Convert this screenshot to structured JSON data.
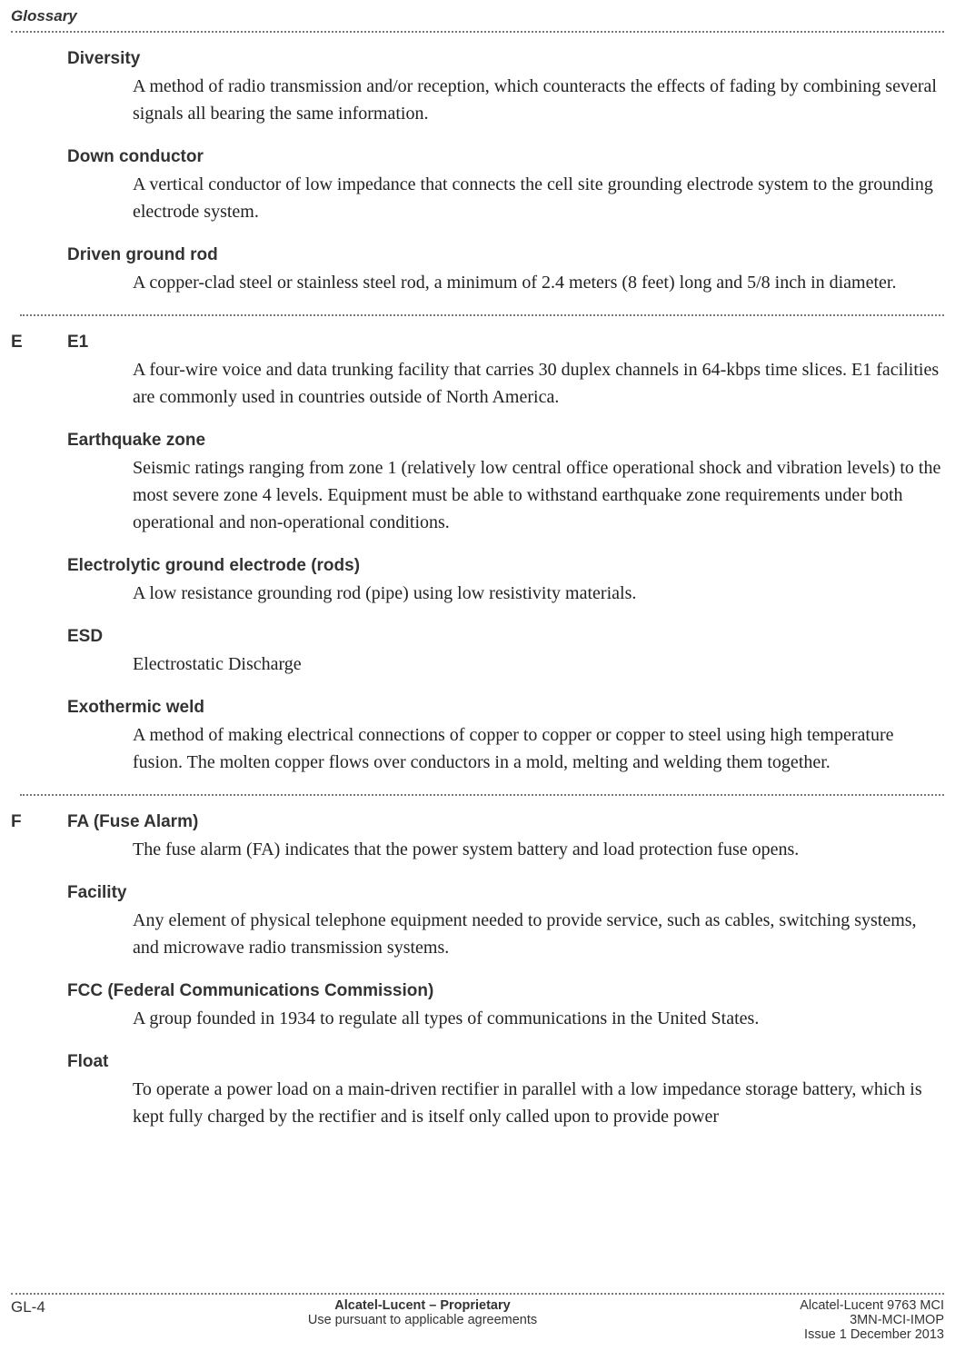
{
  "header": "Glossary",
  "sections": [
    {
      "letter": "",
      "entries": [
        {
          "term": "Diversity",
          "expansion": "",
          "def": "A method of radio transmission and/or reception, which counteracts the effects of fading by combining several signals all bearing the same information."
        },
        {
          "term": "Down conductor",
          "expansion": "",
          "def": "A vertical conductor of low impedance that connects the cell site grounding electrode system to the grounding electrode system."
        },
        {
          "term": "Driven ground rod",
          "expansion": "",
          "def": "A copper-clad steel or stainless steel rod, a minimum of 2.4 meters (8 feet) long and 5/8 inch in diameter."
        }
      ]
    },
    {
      "letter": "E",
      "entries": [
        {
          "term": "E1",
          "expansion": "",
          "def": "A four-wire voice and data trunking facility that carries 30 duplex channels in 64-kbps time slices. E1 facilities are commonly used in countries outside of North America."
        },
        {
          "term": "Earthquake zone",
          "expansion": "",
          "def": "Seismic ratings ranging from zone 1 (relatively low central office operational shock and vibration levels) to the most severe zone 4 levels. Equipment must be able to withstand earthquake zone requirements under both operational and non-operational conditions."
        },
        {
          "term": "Electrolytic ground electrode",
          "expansion": "(rods)",
          "def": "A low resistance grounding rod (pipe) using low resistivity materials."
        },
        {
          "term": "ESD",
          "expansion": "",
          "def": "Electrostatic Discharge"
        },
        {
          "term": "Exothermic weld",
          "expansion": "",
          "def": "A method of making electrical connections of copper to copper or copper to steel using high temperature fusion. The molten copper flows over conductors in a mold, melting and welding them together."
        }
      ]
    },
    {
      "letter": "F",
      "entries": [
        {
          "term": "FA",
          "expansion": "(Fuse Alarm)",
          "def": "The fuse alarm (FA) indicates that the power system battery and load protection fuse opens."
        },
        {
          "term": "Facility",
          "expansion": "",
          "def": "Any element of physical telephone equipment needed to provide service, such as cables, switching systems, and microwave radio transmission systems."
        },
        {
          "term": "FCC",
          "expansion": "(Federal Communications Commission)",
          "def": "A group founded in 1934 to regulate all types of communications in the United States."
        },
        {
          "term": "Float",
          "expansion": "",
          "def": "To operate a power load on a main-driven rectifier in parallel with a low impedance storage battery, which is kept fully charged by the rectifier and is itself only called upon to provide power"
        }
      ]
    }
  ],
  "footer": {
    "page": "GL-4",
    "center1": "Alcatel-Lucent – Proprietary",
    "center2": "Use pursuant to applicable agreements",
    "right1": "Alcatel-Lucent 9763 MCI",
    "right2": "3MN-MCI-IMOP",
    "right3": "Issue 1   December 2013"
  }
}
